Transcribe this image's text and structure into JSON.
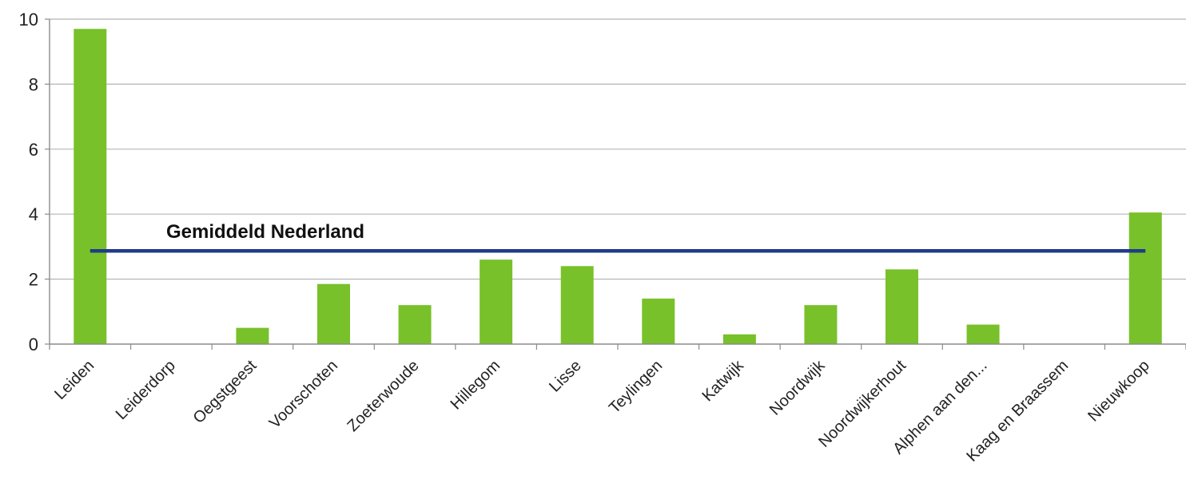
{
  "chart_data": {
    "type": "bar",
    "categories": [
      "Leiden",
      "Leiderdorp",
      "Oegstgeest",
      "Voorschoten",
      "Zoeterwoude",
      "Hillegom",
      "Lisse",
      "Teylingen",
      "Katwijk",
      "Noordwijk",
      "Noordwijkerhout",
      "Alphen aan den...",
      "Kaag en Braassem",
      "Nieuwkoop"
    ],
    "values": [
      9.7,
      0,
      0.5,
      1.85,
      1.2,
      2.6,
      2.4,
      1.4,
      0.3,
      1.2,
      2.3,
      0.6,
      0,
      4.05
    ],
    "ylim": [
      0,
      10
    ],
    "yticks": [
      0,
      2,
      4,
      6,
      8,
      10
    ],
    "grid": true,
    "bar_color": "#78c12a",
    "reference_line": {
      "label": "Gemiddeld Nederland",
      "value": 2.87,
      "color": "#1f3a8a"
    },
    "title": "",
    "xlabel": "",
    "ylabel": ""
  }
}
